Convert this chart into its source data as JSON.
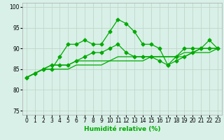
{
  "title": "",
  "xlabel": "Humidité relative (%)",
  "ylabel": "",
  "xlim": [
    -0.5,
    23.5
  ],
  "ylim": [
    74,
    101
  ],
  "yticks": [
    75,
    80,
    85,
    90,
    95,
    100
  ],
  "xticks": [
    0,
    1,
    2,
    3,
    4,
    5,
    6,
    7,
    8,
    9,
    10,
    11,
    12,
    13,
    14,
    15,
    16,
    17,
    18,
    19,
    20,
    21,
    22,
    23
  ],
  "bg_color": "#d8f0e8",
  "grid_color": "#c0d8c8",
  "line_color": "#00aa00",
  "lines": [
    [
      83,
      84,
      85,
      85,
      88,
      91,
      91,
      92,
      91,
      91,
      94,
      97,
      96,
      94,
      91,
      91,
      90,
      86,
      88,
      90,
      90,
      90,
      92,
      90
    ],
    [
      83,
      84,
      85,
      86,
      86,
      86,
      87,
      88,
      89,
      89,
      90,
      91,
      89,
      88,
      88,
      88,
      87,
      86,
      87,
      88,
      89,
      90,
      90,
      90
    ],
    [
      83,
      84,
      85,
      86,
      86,
      86,
      87,
      87,
      87,
      87,
      87,
      88,
      88,
      88,
      88,
      88,
      88,
      88,
      88,
      89,
      89,
      90,
      90,
      90
    ],
    [
      83,
      84,
      85,
      85,
      85,
      85,
      86,
      86,
      86,
      86,
      87,
      87,
      87,
      87,
      87,
      88,
      88,
      88,
      88,
      88,
      89,
      89,
      89,
      90
    ]
  ],
  "marker_lines": [
    0,
    1
  ],
  "marker": "D",
  "marker_size": 2.5,
  "linewidth": 0.9,
  "tick_fontsize": 5.5,
  "xlabel_fontsize": 6.5
}
